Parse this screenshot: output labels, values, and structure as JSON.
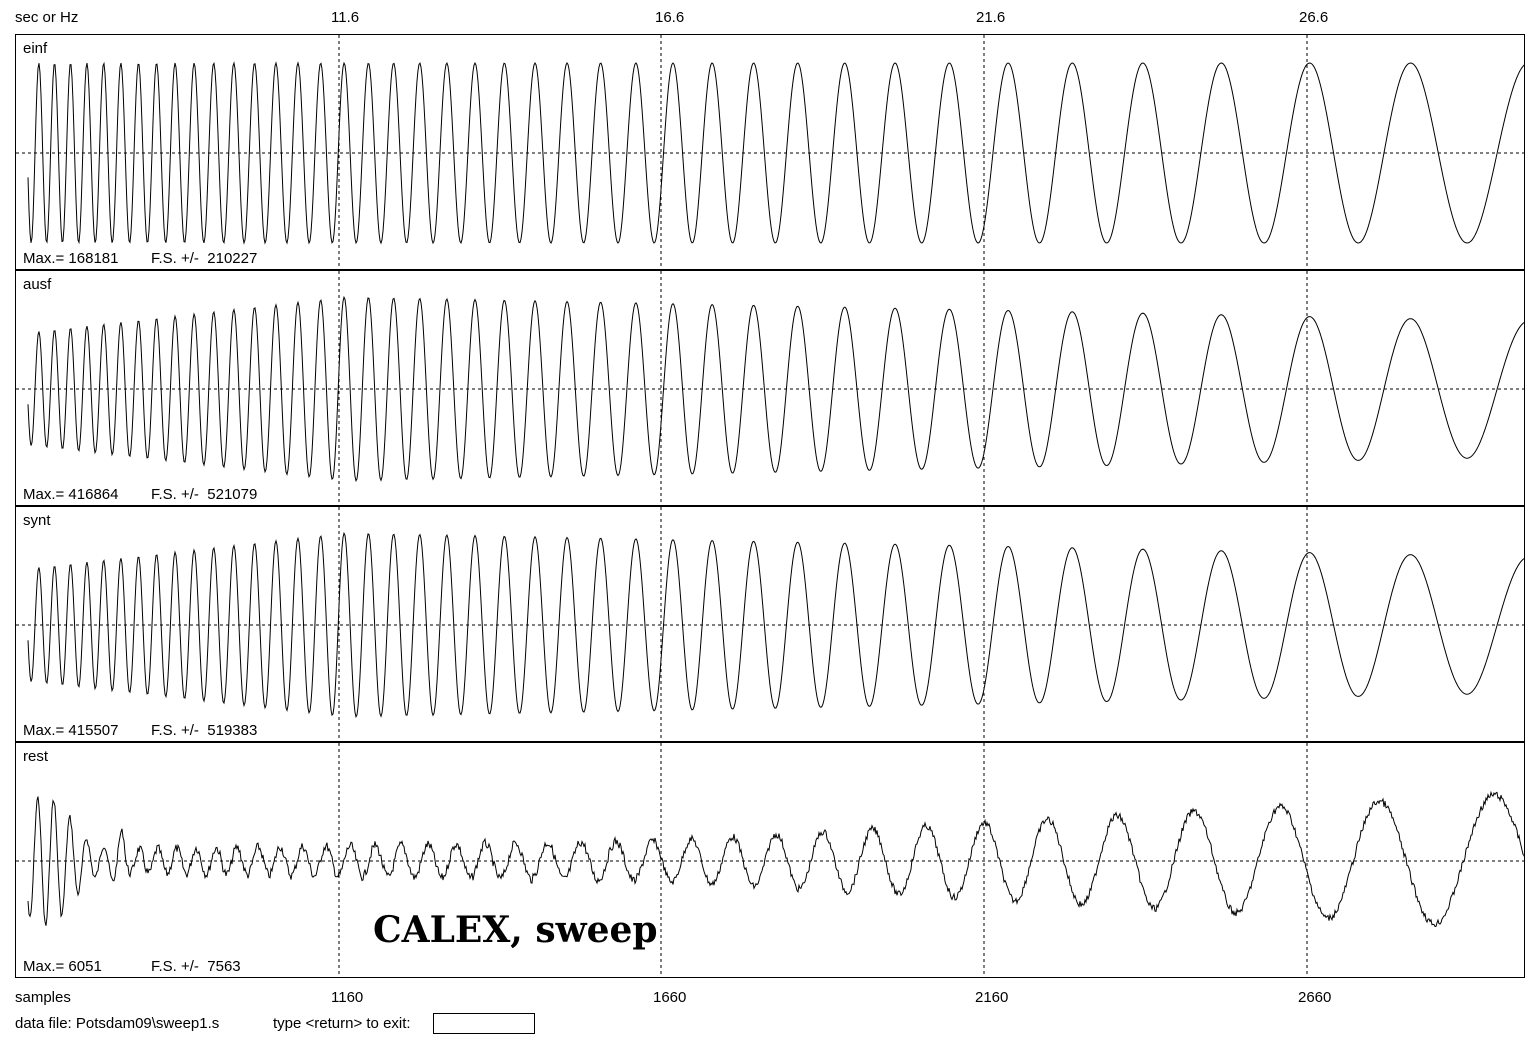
{
  "header": {
    "x_label_top": "sec or Hz",
    "ticks_top": [
      "11.6",
      "16.6",
      "21.6",
      "26.6"
    ]
  },
  "panels": [
    {
      "name": "einf",
      "max": "Max.= 168181",
      "fs": "F.S. +/-  210227"
    },
    {
      "name": "ausf",
      "max": "Max.= 416864",
      "fs": "F.S. +/-  521079"
    },
    {
      "name": "synt",
      "max": "Max.= 415507",
      "fs": "F.S. +/-  519383"
    },
    {
      "name": "rest",
      "max": "Max.= 6051",
      "fs": "F.S. +/-  7563"
    }
  ],
  "caption": "CALEX, sweep",
  "footer": {
    "x_label_bottom": "samples",
    "ticks_bottom": [
      "1160",
      "1660",
      "2160",
      "2660"
    ],
    "data_file": "data file: Potsdam09\\sweep1.s",
    "exit_prompt": "type <return> to exit:",
    "exit_input_value": ""
  }
}
